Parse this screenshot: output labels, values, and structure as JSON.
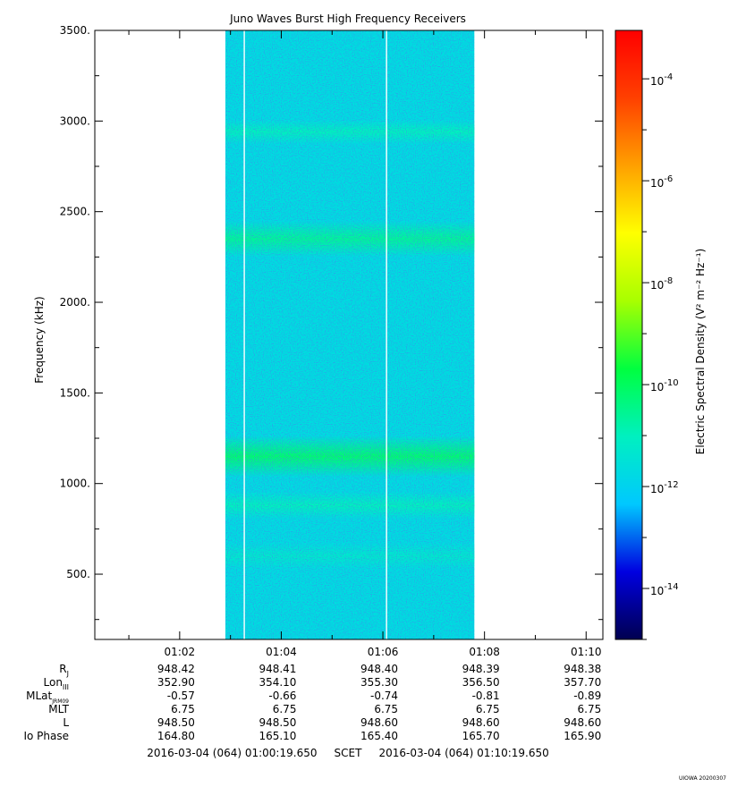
{
  "chart_data": {
    "type": "heatmap",
    "title": "Juno Waves Burst High Frequency Receivers",
    "ylabel": "Frequency (kHz)",
    "colorbar_label": "Electric Spectral Density (V² m⁻² Hz⁻¹)",
    "y_ticks": [
      "500.",
      "1000.",
      "1500.",
      "2000.",
      "2500.",
      "3000.",
      "3500."
    ],
    "y_tick_values": [
      500,
      1000,
      1500,
      2000,
      2500,
      3000,
      3500
    ],
    "ylim": [
      140,
      3500
    ],
    "x_ticks": [
      "01:02",
      "01:04",
      "01:06",
      "01:08",
      "01:10"
    ],
    "x_tick_values": [
      2,
      4,
      6,
      8,
      10
    ],
    "x_unit": "minutes after 01:00 (2016-03-04 UTC)",
    "xlim": [
      0.33,
      10.33
    ],
    "data_coverage": {
      "start": 2.9,
      "end": 7.8
    },
    "data_gaps": [
      3.27,
      6.07
    ],
    "background_level": -11.7,
    "emission_bands": [
      {
        "center": 2350,
        "width": 40,
        "level": -10.6
      },
      {
        "center": 1150,
        "width": 55,
        "level": -10.2
      },
      {
        "center": 880,
        "width": 18,
        "level": -11.0
      },
      {
        "center": 2940,
        "width": 8,
        "level": -11.0
      },
      {
        "center": 600,
        "width": 15,
        "level": -11.3
      }
    ],
    "colorbar": {
      "scale": "log",
      "range": [
        -15,
        -3.05
      ],
      "ticks": [
        -14,
        -12,
        -10,
        -8,
        -6,
        -4
      ],
      "tick_labels": [
        "10",
        "10",
        "10",
        "10",
        "10",
        "10"
      ],
      "tick_exponents": [
        "-14",
        "-12",
        "-10",
        "-8",
        "-6",
        "-4"
      ],
      "colors": [
        "#000050",
        "#0000e0",
        "#00c8ff",
        "#00f0c0",
        "#00ff40",
        "#a8ff00",
        "#ffff00",
        "#ffa000",
        "#ff4000",
        "#ff0000"
      ]
    },
    "ephemeris": {
      "rows": [
        {
          "label": "R",
          "sub": "J",
          "values": [
            "948.42",
            "948.41",
            "948.40",
            "948.39",
            "948.38"
          ]
        },
        {
          "label": "Lon",
          "sub": "III",
          "values": [
            "352.90",
            "354.10",
            "355.30",
            "356.50",
            "357.70"
          ]
        },
        {
          "label": "MLat",
          "sub": "JRM09",
          "values": [
            "-0.57",
            "-0.66",
            "-0.74",
            "-0.81",
            "-0.89"
          ]
        },
        {
          "label": "MLT",
          "sub": "",
          "values": [
            "6.75",
            "6.75",
            "6.75",
            "6.75",
            "6.75"
          ]
        },
        {
          "label": "L",
          "sub": "",
          "values": [
            "948.50",
            "948.50",
            "948.60",
            "948.60",
            "948.60"
          ]
        },
        {
          "label": "Io Phase",
          "sub": "",
          "values": [
            "164.80",
            "165.10",
            "165.40",
            "165.70",
            "165.90"
          ]
        }
      ]
    },
    "time_range_label": "2016-03-04 (064) 01:00:19.650     SCET     2016-03-04 (064) 01:10:19.650",
    "credit": "UIOWA 20200307"
  }
}
